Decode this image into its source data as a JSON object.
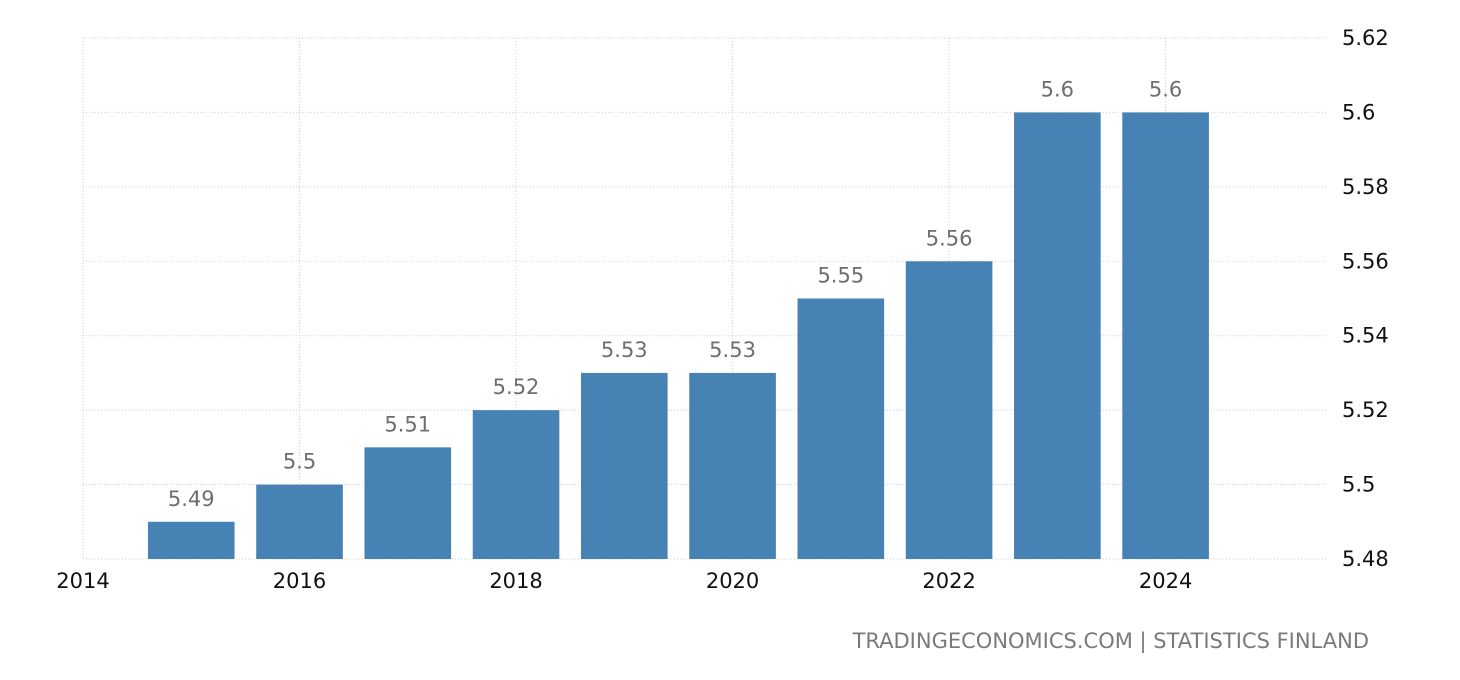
{
  "chart_data": {
    "type": "bar",
    "title": "",
    "xlabel": "",
    "ylabel": "",
    "x": [
      2015,
      2016,
      2017,
      2018,
      2019,
      2020,
      2021,
      2022,
      2023,
      2024
    ],
    "values": [
      5.49,
      5.5,
      5.51,
      5.52,
      5.53,
      5.53,
      5.55,
      5.56,
      5.6,
      5.6
    ],
    "data_labels": [
      "5.49",
      "5.5",
      "5.51",
      "5.52",
      "5.53",
      "5.53",
      "5.55",
      "5.56",
      "5.6",
      "5.6"
    ],
    "xlim": [
      2014,
      2025.5
    ],
    "ylim": [
      5.48,
      5.62
    ],
    "x_ticks": [
      "2014",
      "2016",
      "2018",
      "2020",
      "2022",
      "2024"
    ],
    "y_ticks": [
      "5.48",
      "5.5",
      "5.52",
      "5.54",
      "5.56",
      "5.58",
      "5.6",
      "5.62"
    ],
    "y_axis_position": "right",
    "grid": true,
    "bar_color": "#4682b4"
  },
  "source": "TRADINGECONOMICS.COM | STATISTICS FINLAND"
}
